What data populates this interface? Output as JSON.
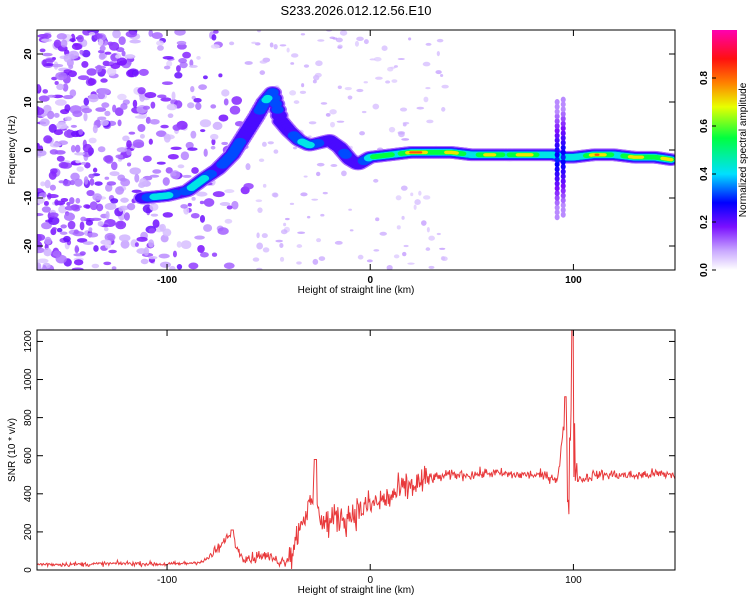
{
  "title": "S233.2026.012.12.56.E10",
  "chart_data": [
    {
      "type": "heatmap",
      "xlabel": "Height of straight line (km)",
      "ylabel": "Frequency (Hz)",
      "xlim": [
        -164,
        150
      ],
      "ylim": [
        -25,
        25
      ],
      "xticks": [
        -100,
        0,
        100
      ],
      "xtick_labels": [
        "-100",
        "0",
        "100"
      ],
      "yticks": [
        20,
        10,
        0,
        -10,
        -20
      ],
      "ytick_labels": [
        "20",
        "10",
        "0",
        "-10",
        "-20"
      ],
      "colorbar": {
        "label": "Normalized spectral amplitude",
        "range": [
          0,
          1
        ],
        "ticks": [
          0.0,
          0.2,
          0.4,
          0.6,
          0.8
        ],
        "tick_labels": [
          "0.0",
          "0.2",
          "0.4",
          "0.6",
          "0.8"
        ],
        "colormap": [
          "#ffffff",
          "#8000ff",
          "#0000ff",
          "#00ffff",
          "#00ff00",
          "#ffff00",
          "#ff0000",
          "#ff00ff"
        ]
      },
      "ridge": {
        "x": [
          -112,
          -100,
          -90,
          -82,
          -75,
          -68,
          -62,
          -56,
          -52,
          -48,
          -44,
          -40,
          -35,
          -30,
          -25,
          -20,
          -15,
          -10,
          -6,
          0,
          10,
          20,
          30,
          40,
          50,
          60,
          70,
          80,
          90,
          95,
          100,
          110,
          120,
          130,
          140,
          148
        ],
        "y": [
          -10,
          -9.5,
          -8.5,
          -6,
          -4,
          -1,
          3,
          7,
          10,
          12,
          6,
          4,
          2,
          1,
          1.5,
          2,
          0.5,
          -2,
          -3,
          -1.5,
          -1,
          -0.5,
          -0.5,
          -0.5,
          -1,
          -1,
          -1,
          -1,
          -1,
          -1.5,
          -1.5,
          -1,
          -1,
          -1.5,
          -1.5,
          -2
        ],
        "amp": [
          0.45,
          0.5,
          0.45,
          0.5,
          0.45,
          0.4,
          0.35,
          0.4,
          0.45,
          0.4,
          0.35,
          0.45,
          0.45,
          0.45,
          0.45,
          0.4,
          0.3,
          0.35,
          0.4,
          0.6,
          0.75,
          0.9,
          0.9,
          0.75,
          0.7,
          0.75,
          0.85,
          0.8,
          0.6,
          0.5,
          0.65,
          0.85,
          0.75,
          0.75,
          0.9,
          0.8
        ]
      }
    },
    {
      "type": "line",
      "xlabel": "Height of straight line (km)",
      "ylabel": "SNR (10 * v/v)",
      "xlim": [
        -164,
        150
      ],
      "ylim": [
        0,
        1260
      ],
      "xticks": [
        -100,
        0,
        100
      ],
      "xtick_labels": [
        "-100",
        "0",
        "100"
      ],
      "yticks": [
        0,
        200,
        400,
        600,
        800,
        1000,
        1200
      ],
      "ytick_labels": [
        "0",
        "200",
        "400",
        "600",
        "800",
        "1000",
        "1200"
      ],
      "color": "#e8393b",
      "series": [
        {
          "name": "SNR",
          "x": [
            -164,
            -140,
            -120,
            -100,
            -90,
            -82,
            -78,
            -74,
            -70,
            -66,
            -62,
            -58,
            -54,
            -50,
            -46,
            -42,
            -38,
            -35,
            -32,
            -30,
            -28,
            -26,
            -24,
            -20,
            -16,
            -12,
            -8,
            -4,
            0,
            5,
            10,
            15,
            20,
            25,
            30,
            40,
            50,
            60,
            70,
            80,
            88,
            92,
            94,
            96,
            97,
            98,
            99,
            100,
            101,
            103,
            106,
            110,
            120,
            130,
            140,
            150
          ],
          "y": [
            30,
            30,
            35,
            30,
            35,
            45,
            80,
            120,
            170,
            110,
            70,
            60,
            80,
            70,
            50,
            45,
            100,
            230,
            300,
            330,
            300,
            260,
            250,
            250,
            280,
            270,
            300,
            320,
            340,
            360,
            380,
            420,
            440,
            460,
            480,
            500,
            500,
            510,
            500,
            500,
            490,
            480,
            600,
            750,
            300,
            150,
            900,
            500,
            450,
            480,
            480,
            500,
            500,
            495,
            505,
            500
          ],
          "peaks": [
            {
              "x": -68,
              "y": 210
            },
            {
              "x": -27,
              "y": 580
            },
            {
              "x": 96,
              "y": 910
            },
            {
              "x": 99.5,
              "y": 1260
            }
          ]
        }
      ]
    }
  ]
}
